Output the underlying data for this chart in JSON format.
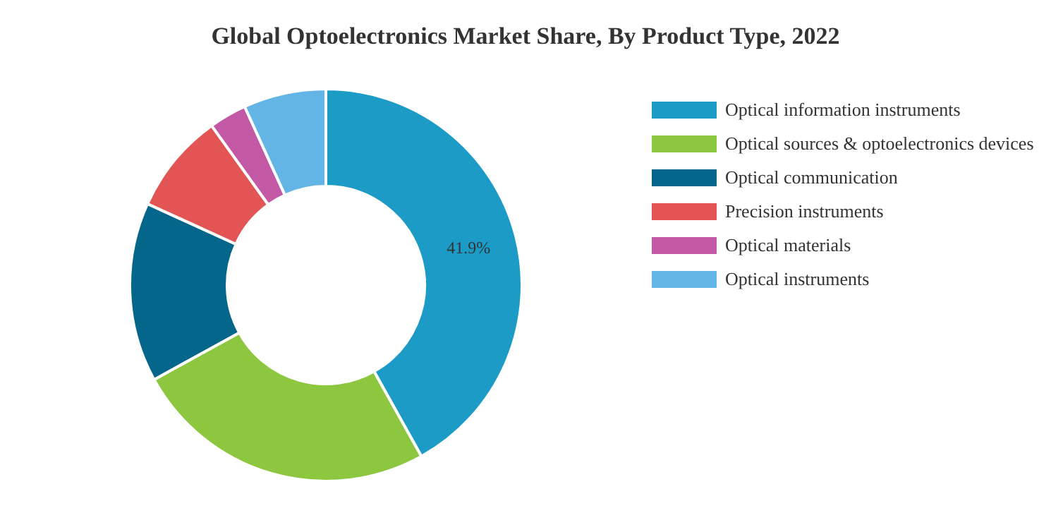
{
  "chart_data": {
    "type": "donut",
    "title": "Global Optoelectronics Market Share, By Product Type, 2022",
    "categories": [
      "Optical information instruments",
      "Optical sources & optoelectronics devices",
      "Optical communication",
      "Precision instruments",
      "Optical materials",
      "Optical instruments"
    ],
    "values": [
      41.9,
      25.1,
      14.8,
      8.3,
      3.1,
      6.8
    ],
    "colors": [
      "#1b9bc5",
      "#8dc63f",
      "#04668a",
      "#e35554",
      "#c358a5",
      "#62b5e5"
    ],
    "value_labels": [
      "41.9%",
      null,
      null,
      null,
      null,
      null
    ],
    "legend": "right"
  }
}
